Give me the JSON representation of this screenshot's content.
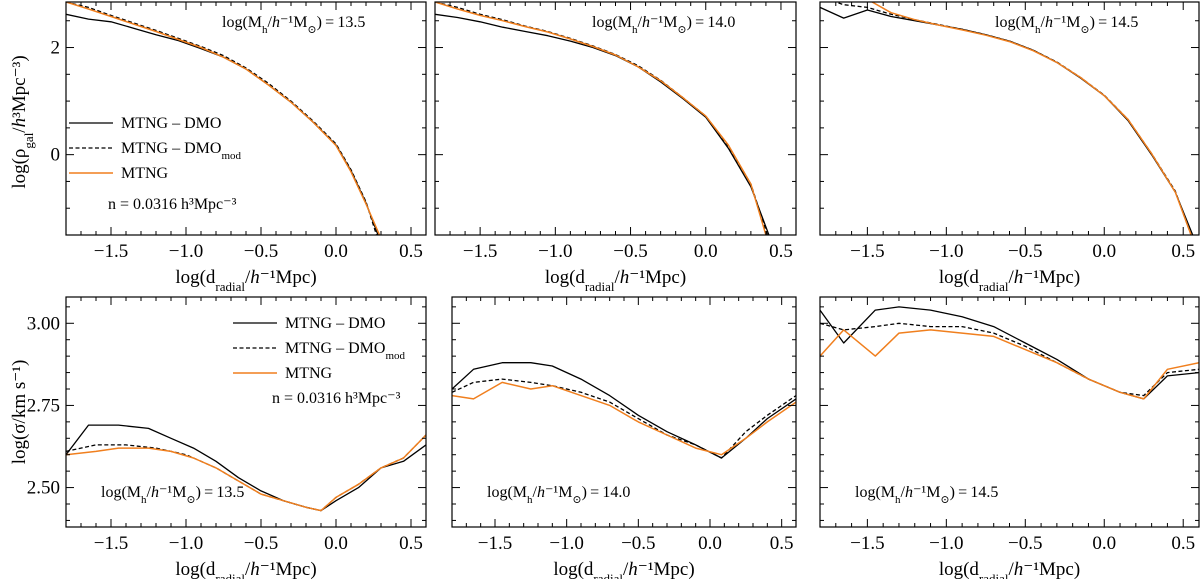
{
  "colors": {
    "dmo": "#000000",
    "dmo_mod": "#000000",
    "mtng": "#f07f1e"
  },
  "legend": {
    "dmo": "MTNG – DMO",
    "dmo_mod_base": "MTNG – DMO",
    "dmo_mod_sub": "mod",
    "mtng": "MTNG",
    "number_density": "n = 0.0316 h³Mpc⁻³"
  },
  "axes_labels": {
    "x": "log(d_radial / h⁻¹Mpc)",
    "y_top": "log(ρ_gal / h³Mpc⁻³)",
    "y_bottom": "log(σ / km s⁻¹)"
  },
  "chart_data": [
    {
      "type": "line",
      "row": "density",
      "mass_label": "log(M_h / h⁻¹M_⊙) = 13.5",
      "xlim": [
        -1.8,
        0.6
      ],
      "ylim": [
        -1.5,
        2.85
      ],
      "xticks": [
        -1.5,
        -1.0,
        -0.5,
        0.0,
        0.5
      ],
      "yticks": [
        0,
        2
      ],
      "series": [
        {
          "name": "MTNG – DMO",
          "style": "solid",
          "x": [
            -1.8,
            -1.65,
            -1.5,
            -1.35,
            -1.2,
            -1.05,
            -0.9,
            -0.75,
            -0.6,
            -0.45,
            -0.3,
            -0.15,
            0.0,
            0.1,
            0.2,
            0.28
          ],
          "y": [
            2.62,
            2.53,
            2.48,
            2.36,
            2.24,
            2.13,
            1.98,
            1.82,
            1.6,
            1.3,
            0.98,
            0.6,
            0.18,
            -0.3,
            -0.9,
            -1.5
          ]
        },
        {
          "name": "MTNG – DMO mod",
          "style": "dashed",
          "x": [
            -1.8,
            -1.65,
            -1.5,
            -1.35,
            -1.2,
            -1.05,
            -0.9,
            -0.75,
            -0.6,
            -0.45,
            -0.3,
            -0.15,
            0.0,
            0.1,
            0.2,
            0.27
          ],
          "y": [
            2.85,
            2.75,
            2.6,
            2.46,
            2.32,
            2.17,
            2.02,
            1.85,
            1.62,
            1.33,
            1.0,
            0.62,
            0.2,
            -0.28,
            -0.88,
            -1.5
          ]
        },
        {
          "name": "MTNG",
          "style": "solid",
          "x": [
            -1.8,
            -1.65,
            -1.5,
            -1.35,
            -1.2,
            -1.05,
            -0.9,
            -0.75,
            -0.6,
            -0.45,
            -0.3,
            -0.15,
            0.0,
            0.1,
            0.2,
            0.29
          ],
          "y": [
            2.85,
            2.72,
            2.58,
            2.44,
            2.3,
            2.15,
            2.0,
            1.82,
            1.6,
            1.3,
            0.98,
            0.6,
            0.17,
            -0.32,
            -0.92,
            -1.5
          ]
        }
      ]
    },
    {
      "type": "line",
      "row": "density",
      "mass_label": "log(M_h / h⁻¹M_⊙) = 14.0",
      "xlim": [
        -1.8,
        0.6
      ],
      "ylim": [
        -1.5,
        2.85
      ],
      "xticks": [
        -1.5,
        -1.0,
        -0.5,
        0.0,
        0.5
      ],
      "yticks": [
        0,
        2
      ],
      "series": [
        {
          "name": "MTNG – DMO",
          "style": "solid",
          "x": [
            -1.8,
            -1.65,
            -1.5,
            -1.35,
            -1.2,
            -1.05,
            -0.9,
            -0.75,
            -0.6,
            -0.45,
            -0.3,
            -0.15,
            0.0,
            0.15,
            0.3,
            0.42
          ],
          "y": [
            2.62,
            2.56,
            2.48,
            2.38,
            2.3,
            2.22,
            2.12,
            2.0,
            1.85,
            1.64,
            1.36,
            1.04,
            0.7,
            0.12,
            -0.6,
            -1.5
          ]
        },
        {
          "name": "MTNG – DMO mod",
          "style": "dashed",
          "x": [
            -1.8,
            -1.65,
            -1.5,
            -1.35,
            -1.2,
            -1.05,
            -0.9,
            -0.75,
            -0.6,
            -0.45,
            -0.3,
            -0.15,
            0.0,
            0.15,
            0.3,
            0.41
          ],
          "y": [
            2.85,
            2.75,
            2.62,
            2.52,
            2.4,
            2.3,
            2.17,
            2.03,
            1.87,
            1.66,
            1.39,
            1.06,
            0.72,
            0.16,
            -0.55,
            -1.5
          ]
        },
        {
          "name": "MTNG",
          "style": "solid",
          "x": [
            -1.8,
            -1.65,
            -1.5,
            -1.35,
            -1.2,
            -1.05,
            -0.9,
            -0.75,
            -0.6,
            -0.45,
            -0.3,
            -0.15,
            0.0,
            0.15,
            0.3,
            0.4
          ],
          "y": [
            2.85,
            2.72,
            2.6,
            2.5,
            2.39,
            2.29,
            2.16,
            2.02,
            1.86,
            1.64,
            1.38,
            1.06,
            0.72,
            0.18,
            -0.55,
            -1.5
          ]
        }
      ]
    },
    {
      "type": "line",
      "row": "density",
      "mass_label": "log(M_h / h⁻¹M_⊙) = 14.5",
      "xlim": [
        -1.8,
        0.6
      ],
      "ylim": [
        -1.5,
        2.85
      ],
      "xticks": [
        -1.5,
        -1.0,
        -0.5,
        0.0,
        0.5
      ],
      "yticks": [
        0,
        2
      ],
      "series": [
        {
          "name": "MTNG – DMO",
          "style": "solid",
          "x": [
            -1.8,
            -1.65,
            -1.5,
            -1.35,
            -1.2,
            -1.05,
            -0.9,
            -0.75,
            -0.6,
            -0.45,
            -0.3,
            -0.15,
            0.0,
            0.15,
            0.3,
            0.45,
            0.56
          ],
          "y": [
            2.75,
            2.55,
            2.7,
            2.58,
            2.5,
            2.42,
            2.34,
            2.24,
            2.12,
            1.95,
            1.72,
            1.43,
            1.1,
            0.64,
            0.0,
            -0.7,
            -1.5
          ]
        },
        {
          "name": "MTNG – DMO mod",
          "style": "dashed",
          "x": [
            -1.8,
            -1.65,
            -1.5,
            -1.35,
            -1.2,
            -1.05,
            -0.9,
            -0.75,
            -0.6,
            -0.45,
            -0.3,
            -0.15,
            0.0,
            0.15,
            0.3,
            0.45,
            0.55
          ],
          "y": [
            2.95,
            2.8,
            2.75,
            2.62,
            2.52,
            2.43,
            2.34,
            2.24,
            2.12,
            1.95,
            1.73,
            1.44,
            1.11,
            0.66,
            0.02,
            -0.68,
            -1.5
          ]
        },
        {
          "name": "MTNG",
          "style": "solid",
          "x": [
            -1.5,
            -1.35,
            -1.2,
            -1.05,
            -0.9,
            -0.75,
            -0.6,
            -0.45,
            -0.3,
            -0.15,
            0.0,
            0.15,
            0.3,
            0.45,
            0.55
          ],
          "y": [
            2.9,
            2.65,
            2.52,
            2.42,
            2.33,
            2.23,
            2.11,
            1.94,
            1.72,
            1.44,
            1.1,
            0.66,
            0.02,
            -0.7,
            -1.5
          ]
        }
      ]
    },
    {
      "type": "line",
      "row": "dispersion",
      "mass_label": "log(M_h / h⁻¹M_⊙) = 13.5",
      "xlim": [
        -1.8,
        0.6
      ],
      "ylim": [
        2.38,
        3.08
      ],
      "xticks": [
        -1.5,
        -1.0,
        -0.5,
        0.0,
        0.5
      ],
      "yticks": [
        2.5,
        2.75,
        3.0
      ],
      "series": [
        {
          "name": "MTNG – DMO",
          "style": "solid",
          "x": [
            -1.8,
            -1.65,
            -1.45,
            -1.25,
            -1.1,
            -0.95,
            -0.8,
            -0.65,
            -0.5,
            -0.35,
            -0.2,
            -0.1,
            0.0,
            0.15,
            0.3,
            0.45,
            0.6
          ],
          "y": [
            2.6,
            2.69,
            2.69,
            2.68,
            2.65,
            2.62,
            2.58,
            2.53,
            2.49,
            2.46,
            2.44,
            2.43,
            2.46,
            2.5,
            2.56,
            2.58,
            2.63
          ]
        },
        {
          "name": "MTNG – DMO mod",
          "style": "dashed",
          "x": [
            -1.8,
            -1.6,
            -1.4,
            -1.2,
            -1.0,
            -0.8,
            -0.65,
            -0.5,
            -0.35,
            -0.2,
            -0.1,
            0.0,
            0.15,
            0.3,
            0.45,
            0.6
          ],
          "y": [
            2.61,
            2.63,
            2.63,
            2.62,
            2.6,
            2.56,
            2.52,
            2.48,
            2.46,
            2.44,
            2.43,
            2.47,
            2.51,
            2.56,
            2.59,
            2.66
          ]
        },
        {
          "name": "MTNG",
          "style": "solid",
          "x": [
            -1.8,
            -1.6,
            -1.45,
            -1.25,
            -1.1,
            -0.95,
            -0.8,
            -0.65,
            -0.5,
            -0.35,
            -0.2,
            -0.1,
            0.0,
            0.15,
            0.3,
            0.45,
            0.6
          ],
          "y": [
            2.6,
            2.61,
            2.62,
            2.62,
            2.61,
            2.59,
            2.56,
            2.52,
            2.48,
            2.46,
            2.44,
            2.43,
            2.47,
            2.51,
            2.56,
            2.59,
            2.66
          ]
        }
      ]
    },
    {
      "type": "line",
      "row": "dispersion",
      "mass_label": "log(M_h / h⁻¹M_⊙) = 14.0",
      "xlim": [
        -1.8,
        0.6
      ],
      "ylim": [
        2.38,
        3.08
      ],
      "xticks": [
        -1.5,
        -1.0,
        -0.5,
        0.0,
        0.5
      ],
      "yticks": [
        2.5,
        2.75,
        3.0
      ],
      "series": [
        {
          "name": "MTNG – DMO",
          "style": "solid",
          "x": [
            -1.8,
            -1.65,
            -1.45,
            -1.25,
            -1.1,
            -0.9,
            -0.7,
            -0.5,
            -0.3,
            -0.1,
            0.08,
            0.25,
            0.4,
            0.6
          ],
          "y": [
            2.8,
            2.86,
            2.88,
            2.88,
            2.87,
            2.83,
            2.78,
            2.72,
            2.67,
            2.63,
            2.59,
            2.65,
            2.71,
            2.77
          ]
        },
        {
          "name": "MTNG – DMO mod",
          "style": "dashed",
          "x": [
            -1.8,
            -1.65,
            -1.45,
            -1.25,
            -1.1,
            -0.9,
            -0.7,
            -0.5,
            -0.3,
            -0.1,
            0.08,
            0.25,
            0.4,
            0.6
          ],
          "y": [
            2.79,
            2.82,
            2.83,
            2.82,
            2.81,
            2.79,
            2.76,
            2.71,
            2.66,
            2.63,
            2.59,
            2.67,
            2.72,
            2.78
          ]
        },
        {
          "name": "MTNG",
          "style": "solid",
          "x": [
            -1.8,
            -1.65,
            -1.45,
            -1.25,
            -1.1,
            -0.9,
            -0.7,
            -0.5,
            -0.3,
            -0.1,
            0.08,
            0.25,
            0.4,
            0.6
          ],
          "y": [
            2.78,
            2.77,
            2.82,
            2.8,
            2.81,
            2.78,
            2.75,
            2.7,
            2.66,
            2.62,
            2.6,
            2.65,
            2.7,
            2.76
          ]
        }
      ]
    },
    {
      "type": "line",
      "row": "dispersion",
      "mass_label": "log(M_h / h⁻¹M_⊙) = 14.5",
      "xlim": [
        -1.8,
        0.6
      ],
      "ylim": [
        2.38,
        3.08
      ],
      "xticks": [
        -1.5,
        -1.0,
        -0.5,
        0.0,
        0.5
      ],
      "yticks": [
        2.5,
        2.75,
        3.0
      ],
      "series": [
        {
          "name": "MTNG – DMO",
          "style": "solid",
          "x": [
            -1.8,
            -1.65,
            -1.45,
            -1.3,
            -1.1,
            -0.9,
            -0.7,
            -0.5,
            -0.3,
            -0.1,
            0.1,
            0.25,
            0.4,
            0.6
          ],
          "y": [
            3.04,
            2.94,
            3.04,
            3.05,
            3.04,
            3.02,
            2.99,
            2.94,
            2.89,
            2.83,
            2.79,
            2.77,
            2.84,
            2.85
          ]
        },
        {
          "name": "MTNG – DMO mod",
          "style": "dashed",
          "x": [
            -1.8,
            -1.65,
            -1.45,
            -1.3,
            -1.1,
            -0.9,
            -0.7,
            -0.5,
            -0.3,
            -0.1,
            0.1,
            0.25,
            0.4,
            0.6
          ],
          "y": [
            3.0,
            2.98,
            2.99,
            3.0,
            2.99,
            2.99,
            2.97,
            2.93,
            2.88,
            2.83,
            2.79,
            2.78,
            2.85,
            2.86
          ]
        },
        {
          "name": "MTNG",
          "style": "solid",
          "x": [
            -1.8,
            -1.65,
            -1.45,
            -1.3,
            -1.1,
            -0.9,
            -0.7,
            -0.5,
            -0.3,
            -0.1,
            0.1,
            0.25,
            0.4,
            0.6
          ],
          "y": [
            2.9,
            2.98,
            2.9,
            2.97,
            2.98,
            2.97,
            2.96,
            2.92,
            2.88,
            2.83,
            2.79,
            2.77,
            2.86,
            2.88
          ]
        }
      ]
    }
  ]
}
